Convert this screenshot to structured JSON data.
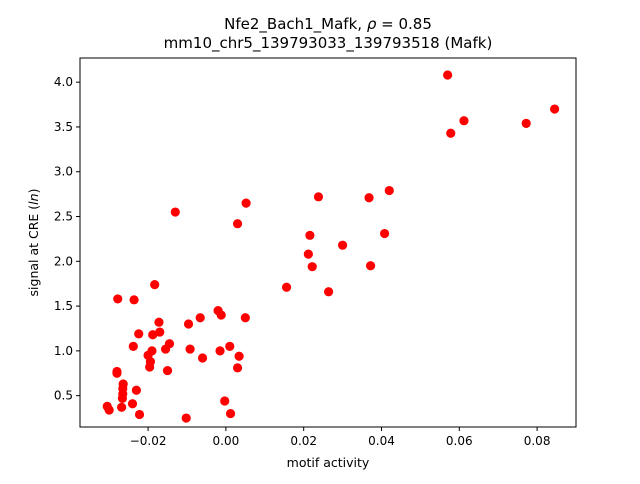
{
  "chart_data": {
    "type": "scatter",
    "title_line1_prefix": "Nfe2_Bach1_Mafk, ",
    "title_rho_symbol": "ρ",
    "title_rho_value": " = 0.85",
    "title_line2": "mm10_chr5_139793033_139793518 (Mafk)",
    "xlabel": "motif activity",
    "ylabel_prefix": "signal at CRE (",
    "ylabel_italic": "ln",
    "ylabel_suffix": ")",
    "xlim": [
      -0.0375,
      0.09
    ],
    "ylim": [
      0.15,
      4.27
    ],
    "xticks": [
      -0.02,
      0.0,
      0.02,
      0.04,
      0.06,
      0.08
    ],
    "xtick_labels": [
      "−0.02",
      "0.00",
      "0.02",
      "0.04",
      "0.06",
      "0.08"
    ],
    "yticks": [
      0.5,
      1.0,
      1.5,
      2.0,
      2.5,
      3.0,
      3.5,
      4.0
    ],
    "ytick_labels": [
      "0.5",
      "1.0",
      "1.5",
      "2.0",
      "2.5",
      "3.0",
      "3.5",
      "4.0"
    ],
    "marker_color": "#ff0000",
    "points": [
      {
        "x": -0.0305,
        "y": 0.38
      },
      {
        "x": -0.03,
        "y": 0.34
      },
      {
        "x": -0.028,
        "y": 0.75
      },
      {
        "x": -0.028,
        "y": 0.77
      },
      {
        "x": -0.0278,
        "y": 1.58
      },
      {
        "x": -0.0268,
        "y": 0.37
      },
      {
        "x": -0.0266,
        "y": 0.47
      },
      {
        "x": -0.0265,
        "y": 0.52
      },
      {
        "x": -0.0265,
        "y": 0.58
      },
      {
        "x": -0.0264,
        "y": 0.63
      },
      {
        "x": -0.024,
        "y": 0.41
      },
      {
        "x": -0.0238,
        "y": 1.05
      },
      {
        "x": -0.0236,
        "y": 1.57
      },
      {
        "x": -0.023,
        "y": 0.56
      },
      {
        "x": -0.0224,
        "y": 1.19
      },
      {
        "x": -0.0222,
        "y": 0.29
      },
      {
        "x": -0.02,
        "y": 0.95
      },
      {
        "x": -0.0196,
        "y": 0.82
      },
      {
        "x": -0.0194,
        "y": 0.88
      },
      {
        "x": -0.019,
        "y": 1.0
      },
      {
        "x": -0.0188,
        "y": 1.18
      },
      {
        "x": -0.0183,
        "y": 1.74
      },
      {
        "x": -0.0172,
        "y": 1.32
      },
      {
        "x": -0.017,
        "y": 1.21
      },
      {
        "x": -0.0155,
        "y": 1.02
      },
      {
        "x": -0.015,
        "y": 0.78
      },
      {
        "x": -0.0145,
        "y": 1.08
      },
      {
        "x": -0.013,
        "y": 2.55
      },
      {
        "x": -0.0102,
        "y": 0.25
      },
      {
        "x": -0.0096,
        "y": 1.3
      },
      {
        "x": -0.0092,
        "y": 1.02
      },
      {
        "x": -0.0066,
        "y": 1.37
      },
      {
        "x": -0.006,
        "y": 0.92
      },
      {
        "x": -0.002,
        "y": 1.45
      },
      {
        "x": -0.0015,
        "y": 1.0
      },
      {
        "x": -0.0012,
        "y": 1.4
      },
      {
        "x": -0.0003,
        "y": 0.44
      },
      {
        "x": 0.001,
        "y": 1.05
      },
      {
        "x": 0.0012,
        "y": 0.3
      },
      {
        "x": 0.003,
        "y": 2.42
      },
      {
        "x": 0.003,
        "y": 0.81
      },
      {
        "x": 0.0034,
        "y": 0.94
      },
      {
        "x": 0.005,
        "y": 1.37
      },
      {
        "x": 0.0052,
        "y": 2.65
      },
      {
        "x": 0.0156,
        "y": 1.71
      },
      {
        "x": 0.0212,
        "y": 2.08
      },
      {
        "x": 0.0216,
        "y": 2.29
      },
      {
        "x": 0.0222,
        "y": 1.94
      },
      {
        "x": 0.0238,
        "y": 2.72
      },
      {
        "x": 0.0264,
        "y": 1.66
      },
      {
        "x": 0.03,
        "y": 2.18
      },
      {
        "x": 0.0368,
        "y": 2.71
      },
      {
        "x": 0.0372,
        "y": 1.95
      },
      {
        "x": 0.0408,
        "y": 2.31
      },
      {
        "x": 0.042,
        "y": 2.79
      },
      {
        "x": 0.057,
        "y": 4.08
      },
      {
        "x": 0.0578,
        "y": 3.43
      },
      {
        "x": 0.0612,
        "y": 3.57
      },
      {
        "x": 0.0772,
        "y": 3.54
      },
      {
        "x": 0.0845,
        "y": 3.7
      }
    ]
  }
}
